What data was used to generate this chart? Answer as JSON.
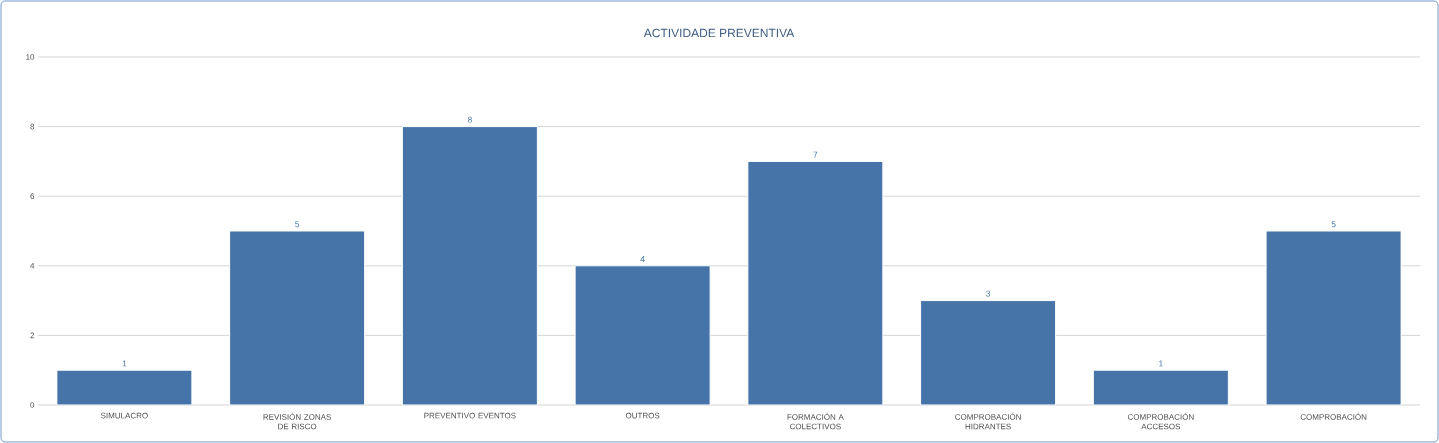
{
  "chart_data": {
    "type": "bar",
    "title": "ACTIVIDADE PREVENTIVA",
    "categories": [
      "SIMULACRO",
      "REVISIÓN ZONAS DE RISCO",
      "PREVENTIVO EVENTOS",
      "OUTROS",
      "FORMACIÓN A COLECTIVOS",
      "COMPROBACIÓN HIDRANTES",
      "COMPROBACIÓN ACCESOS",
      "COMPROBACIÓN"
    ],
    "values": [
      1,
      5,
      8,
      4,
      7,
      3,
      1,
      5
    ],
    "color": "#4674a8",
    "ylim": [
      0,
      10
    ],
    "yticks": [
      0,
      2,
      4,
      6,
      8,
      10
    ],
    "grid": "y",
    "data_labels": true
  }
}
